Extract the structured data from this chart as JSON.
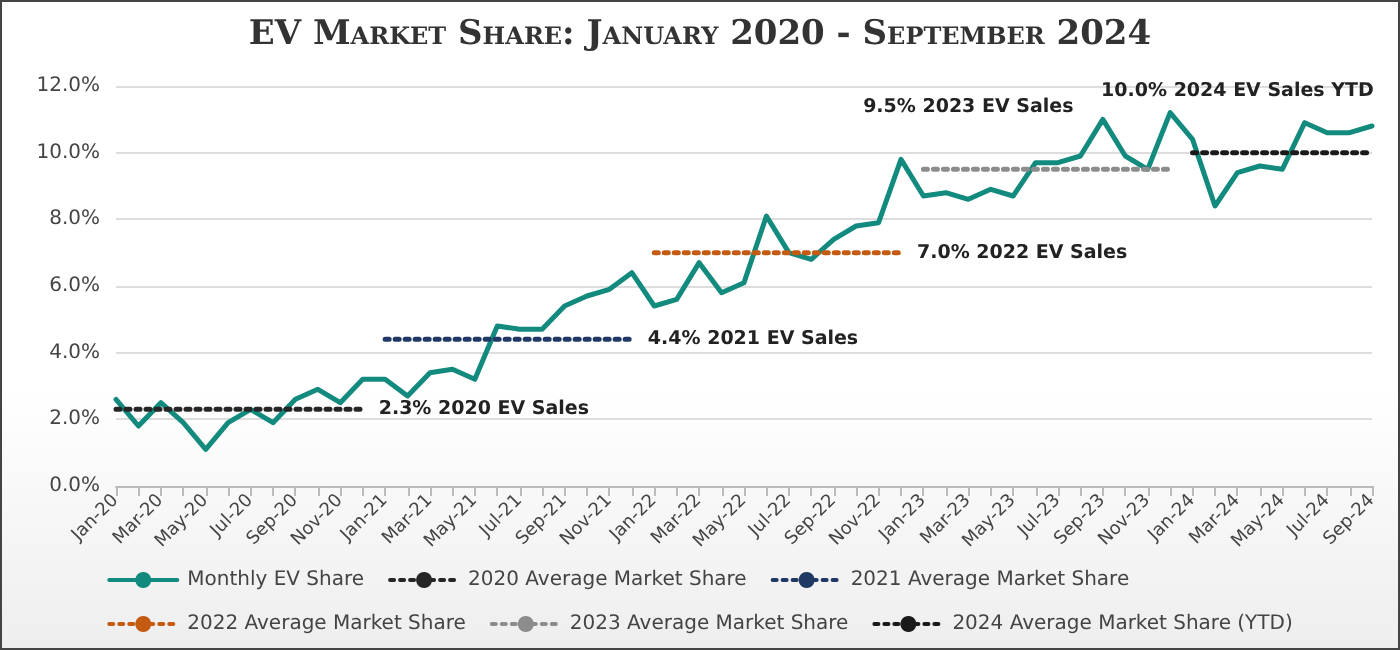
{
  "chart_data": {
    "type": "line",
    "title": "EV Market Share: January 2020 - September 2024",
    "categories": [
      "Jan-20",
      null,
      "Mar-20",
      null,
      "May-20",
      null,
      "Jul-20",
      null,
      "Sep-20",
      null,
      "Nov-20",
      null,
      "Jan-21",
      null,
      "Mar-21",
      null,
      "May-21",
      null,
      "Jul-21",
      null,
      "Sep-21",
      null,
      "Nov-21",
      null,
      "Jan-22",
      null,
      "Mar-22",
      null,
      "May-22",
      null,
      "Jul-22",
      null,
      "Sep-22",
      null,
      "Nov-22",
      null,
      "Jan-23",
      null,
      "Mar-23",
      null,
      "May-23",
      null,
      "Jul-23",
      null,
      "Sep-23",
      null,
      "Nov-23",
      null,
      "Jan-24",
      null,
      "Mar-24",
      null,
      "May-24",
      null,
      "Jul-24",
      null,
      "Sep-24"
    ],
    "series": [
      {
        "name": "Monthly EV Share",
        "color": "#138a7e",
        "line_style": "solid",
        "values": [
          2.6,
          1.8,
          2.5,
          1.9,
          1.1,
          1.9,
          2.3,
          1.9,
          2.6,
          2.9,
          2.5,
          3.2,
          3.2,
          2.7,
          3.4,
          3.5,
          3.2,
          4.8,
          4.7,
          4.7,
          5.4,
          5.7,
          5.9,
          6.4,
          5.4,
          5.6,
          6.7,
          5.8,
          6.1,
          8.1,
          7.0,
          6.8,
          7.4,
          7.8,
          7.9,
          9.8,
          8.7,
          8.8,
          8.6,
          8.9,
          8.7,
          9.7,
          9.7,
          9.9,
          11.0,
          9.9,
          9.5,
          11.2,
          10.4,
          8.4,
          9.4,
          9.6,
          9.5,
          10.9,
          10.6,
          10.6,
          10.8
        ]
      },
      {
        "name": "2020 Average Market Share",
        "color": "#262626",
        "line_style": "dotted",
        "values": [
          2.3,
          2.3,
          2.3,
          2.3,
          2.3,
          2.3,
          2.3,
          2.3,
          2.3,
          2.3,
          2.3,
          2.3,
          null,
          null,
          null,
          null,
          null,
          null,
          null,
          null,
          null,
          null,
          null,
          null,
          null,
          null,
          null,
          null,
          null,
          null,
          null,
          null,
          null,
          null,
          null,
          null,
          null,
          null,
          null,
          null,
          null,
          null,
          null,
          null,
          null,
          null,
          null,
          null,
          null,
          null,
          null,
          null,
          null,
          null,
          null,
          null,
          null
        ]
      },
      {
        "name": "2021 Average Market Share",
        "color": "#1f3864",
        "line_style": "dotted",
        "values": [
          null,
          null,
          null,
          null,
          null,
          null,
          null,
          null,
          null,
          null,
          null,
          null,
          4.4,
          4.4,
          4.4,
          4.4,
          4.4,
          4.4,
          4.4,
          4.4,
          4.4,
          4.4,
          4.4,
          4.4,
          null,
          null,
          null,
          null,
          null,
          null,
          null,
          null,
          null,
          null,
          null,
          null,
          null,
          null,
          null,
          null,
          null,
          null,
          null,
          null,
          null,
          null,
          null,
          null,
          null,
          null,
          null,
          null,
          null,
          null,
          null,
          null,
          null
        ]
      },
      {
        "name": "2022 Average Market Share",
        "color": "#c55a11",
        "line_style": "dotted",
        "values": [
          null,
          null,
          null,
          null,
          null,
          null,
          null,
          null,
          null,
          null,
          null,
          null,
          null,
          null,
          null,
          null,
          null,
          null,
          null,
          null,
          null,
          null,
          null,
          null,
          7.0,
          7.0,
          7.0,
          7.0,
          7.0,
          7.0,
          7.0,
          7.0,
          7.0,
          7.0,
          7.0,
          7.0,
          null,
          null,
          null,
          null,
          null,
          null,
          null,
          null,
          null,
          null,
          null,
          null,
          null,
          null,
          null,
          null,
          null,
          null,
          null,
          null,
          null
        ]
      },
      {
        "name": "2023 Average Market Share",
        "color": "#8c8c8c",
        "line_style": "dotted",
        "values": [
          null,
          null,
          null,
          null,
          null,
          null,
          null,
          null,
          null,
          null,
          null,
          null,
          null,
          null,
          null,
          null,
          null,
          null,
          null,
          null,
          null,
          null,
          null,
          null,
          null,
          null,
          null,
          null,
          null,
          null,
          null,
          null,
          null,
          null,
          null,
          null,
          9.5,
          9.5,
          9.5,
          9.5,
          9.5,
          9.5,
          9.5,
          9.5,
          9.5,
          9.5,
          9.5,
          9.5,
          null,
          null,
          null,
          null,
          null,
          null,
          null,
          null,
          null
        ]
      },
      {
        "name": "2024 Average Market Share (YTD)",
        "color": "#1a1a1a",
        "line_style": "dotted",
        "values": [
          null,
          null,
          null,
          null,
          null,
          null,
          null,
          null,
          null,
          null,
          null,
          null,
          null,
          null,
          null,
          null,
          null,
          null,
          null,
          null,
          null,
          null,
          null,
          null,
          null,
          null,
          null,
          null,
          null,
          null,
          null,
          null,
          null,
          null,
          null,
          null,
          null,
          null,
          null,
          null,
          null,
          null,
          null,
          null,
          null,
          null,
          null,
          null,
          10.0,
          10.0,
          10.0,
          10.0,
          10.0,
          10.0,
          10.0,
          10.0,
          10.0
        ]
      }
    ],
    "annotations": [
      {
        "text": "2.3% 2020 EV Sales",
        "x": "Nov-20",
        "y": 2.3
      },
      {
        "text": "4.4% 2021 EV Sales",
        "x": "Nov-21",
        "y": 4.4
      },
      {
        "text": "7.0% 2022 EV Sales",
        "x": "Nov-22",
        "y": 7.0
      },
      {
        "text": "9.5% 2023 EV Sales",
        "x": "Mar-23",
        "y": 9.5
      },
      {
        "text": "10.0% 2024 EV Sales YTD",
        "x": "Mar-24",
        "y": 10.0
      }
    ],
    "ylim": [
      0,
      12
    ],
    "yticks": [
      {
        "value": 0,
        "label": "0.0%"
      },
      {
        "value": 2,
        "label": "2.0%"
      },
      {
        "value": 4,
        "label": "4.0%"
      },
      {
        "value": 6,
        "label": "6.0%"
      },
      {
        "value": 8,
        "label": "8.0%"
      },
      {
        "value": 10,
        "label": "10.0%"
      },
      {
        "value": 12,
        "label": "12.0%"
      }
    ],
    "grid": "y",
    "legend": "bottom",
    "marker": "none"
  }
}
